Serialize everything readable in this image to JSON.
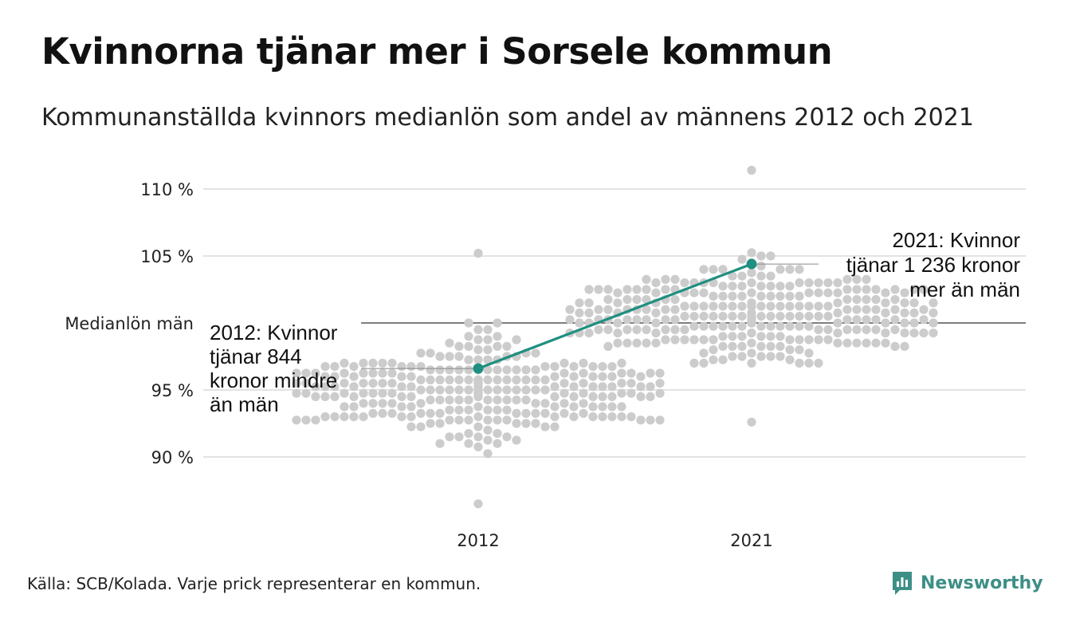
{
  "title": "Kvinnorna tjänar mer i Sorsele kommun",
  "subtitle": "Kommunanställda kvinnors medianlön som andel av männens 2012 och 2021",
  "source": "Källa: SCB/Kolada. Varje prick representerar en kommun.",
  "brand": {
    "name": "Newsworthy",
    "icon": "newsworthy-logo-icon",
    "color": "#3d8f86"
  },
  "colors": {
    "dots": "#cccccc",
    "highlight": "#1e8f80",
    "grid": "#e3e3e3",
    "reference": "#333333"
  },
  "chart_data": {
    "type": "scatter",
    "subtype": "beeswarm",
    "categories": [
      "2012",
      "2021"
    ],
    "ylim": [
      86,
      111
    ],
    "yticks": [
      {
        "value": 90,
        "label": "90 %"
      },
      {
        "value": 95,
        "label": "95 %"
      },
      {
        "value": 105,
        "label": "105 %"
      },
      {
        "value": 110,
        "label": "110 %"
      }
    ],
    "reference_line": {
      "value": 100,
      "label": "Medianlön män"
    },
    "grid": true,
    "distribution": [
      {
        "category": "2012",
        "count": 290,
        "median": 95.0,
        "min": 86.5,
        "max": 105.2
      },
      {
        "category": "2021",
        "count": 290,
        "median": 100.5,
        "min": 92.6,
        "max": 111.4
      }
    ],
    "highlight_series": {
      "color": "#1e8f80",
      "points": [
        {
          "x": "2012",
          "y": 96.6
        },
        {
          "x": "2021",
          "y": 104.4
        }
      ]
    },
    "annotations": [
      {
        "category": "2012",
        "lines": [
          "2012: Kvinnor",
          "tjänar 844",
          "kronor mindre",
          "än män"
        ]
      },
      {
        "category": "2021",
        "lines": [
          "2021: Kvinnor",
          "tjänar 1 236 kronor",
          "mer än män"
        ]
      }
    ]
  }
}
